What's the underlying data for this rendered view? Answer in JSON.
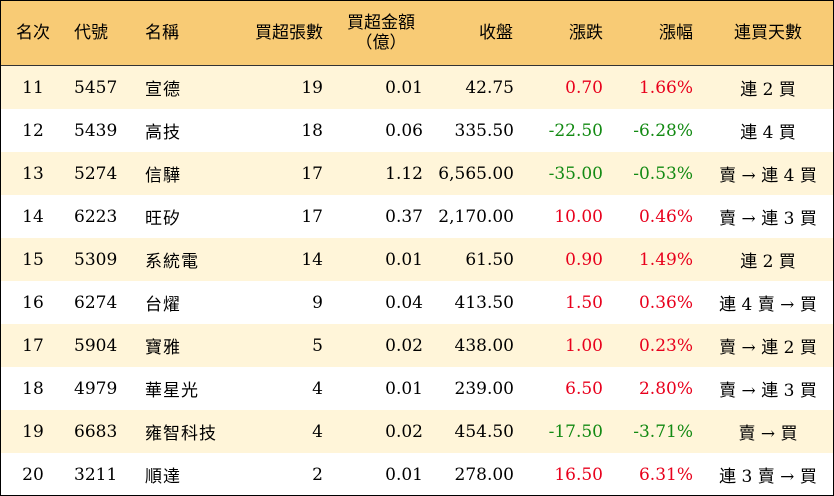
{
  "header": {
    "rank": "名次",
    "code": "代號",
    "name": "名稱",
    "lots": "買超張數",
    "amount_line1": "買超金額",
    "amount_line2": "（億）",
    "close": "收盤",
    "change": "漲跌",
    "pct": "漲幅",
    "days": "連買天數"
  },
  "rows": [
    {
      "rank": "11",
      "code": "5457",
      "name": "宣德",
      "lots": "19",
      "amount": "0.01",
      "close": "42.75",
      "change": "0.70",
      "pct": "1.66%",
      "days": "連 2 買"
    },
    {
      "rank": "12",
      "code": "5439",
      "name": "高技",
      "lots": "18",
      "amount": "0.06",
      "close": "335.50",
      "change": "-22.50",
      "pct": "-6.28%",
      "days": "連 4 買"
    },
    {
      "rank": "13",
      "code": "5274",
      "name": "信驊",
      "lots": "17",
      "amount": "1.12",
      "close": "6,565.00",
      "change": "-35.00",
      "pct": "-0.53%",
      "days": "賣 → 連 4 買"
    },
    {
      "rank": "14",
      "code": "6223",
      "name": "旺矽",
      "lots": "17",
      "amount": "0.37",
      "close": "2,170.00",
      "change": "10.00",
      "pct": "0.46%",
      "days": "賣 → 連 3 買"
    },
    {
      "rank": "15",
      "code": "5309",
      "name": "系統電",
      "lots": "14",
      "amount": "0.01",
      "close": "61.50",
      "change": "0.90",
      "pct": "1.49%",
      "days": "連 2 買"
    },
    {
      "rank": "16",
      "code": "6274",
      "name": "台燿",
      "lots": "9",
      "amount": "0.04",
      "close": "413.50",
      "change": "1.50",
      "pct": "0.36%",
      "days": "連 4 賣 → 買"
    },
    {
      "rank": "17",
      "code": "5904",
      "name": "寶雅",
      "lots": "5",
      "amount": "0.02",
      "close": "438.00",
      "change": "1.00",
      "pct": "0.23%",
      "days": "賣 → 連 2 買"
    },
    {
      "rank": "18",
      "code": "4979",
      "name": "華星光",
      "lots": "4",
      "amount": "0.01",
      "close": "239.00",
      "change": "6.50",
      "pct": "2.80%",
      "days": "賣 → 連 3 買"
    },
    {
      "rank": "19",
      "code": "6683",
      "name": "雍智科技",
      "lots": "4",
      "amount": "0.02",
      "close": "454.50",
      "change": "-17.50",
      "pct": "-3.71%",
      "days": "賣 → 買"
    },
    {
      "rank": "20",
      "code": "3211",
      "name": "順達",
      "lots": "2",
      "amount": "0.01",
      "close": "278.00",
      "change": "16.50",
      "pct": "6.31%",
      "days": "連 3 賣 → 買"
    }
  ],
  "colors": {
    "header_bg": "#f8cb75",
    "stripe_bg": "#fff5d9",
    "up": "#e8001c",
    "down": "#138a13"
  }
}
